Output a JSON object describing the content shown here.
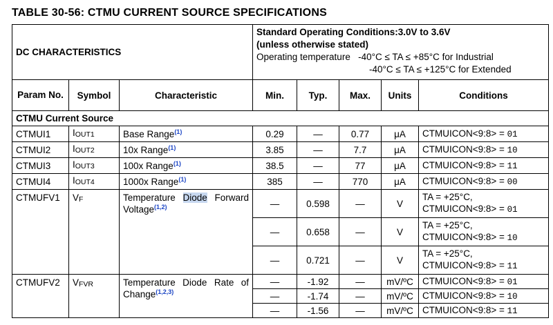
{
  "title": "TABLE 30-56:   CTMU CURRENT SOURCE SPECIFICATIONS",
  "header": {
    "dc_characteristics": "DC CHARACTERISTICS",
    "std_line1": "Standard Operating Conditions:3.0V to 3.6V",
    "std_line2": "(unless otherwise stated)",
    "op_temp_label": "Operating temperature",
    "op_temp_industrial": "-40°C ≤ TA ≤ +85°C for Industrial",
    "op_temp_extended": "-40°C ≤ TA ≤ +125°C for Extended"
  },
  "columns": {
    "param_no": "Param No.",
    "symbol": "Symbol",
    "characteristic": "Characteristic",
    "min": "Min.",
    "typ": "Typ.",
    "max": "Max.",
    "units": "Units",
    "conditions": "Conditions"
  },
  "section_label": "CTMU Current Source",
  "current_rows": [
    {
      "param": "CTMUI1",
      "sym_main": "I",
      "sym_sub": "OUT1",
      "char": "Base Range",
      "note": "(1)",
      "min": "0.29",
      "typ": "—",
      "max": "0.77",
      "units": "μA",
      "cond_prefix": "CTMUICON<9:8> = ",
      "cond_value": "01"
    },
    {
      "param": "CTMUI2",
      "sym_main": "I",
      "sym_sub": "OUT2",
      "char": "10x Range",
      "note": "(1)",
      "min": "3.85",
      "typ": "—",
      "max": "7.7",
      "units": "μA",
      "cond_prefix": "CTMUICON<9:8> = ",
      "cond_value": "10"
    },
    {
      "param": "CTMUI3",
      "sym_main": "I",
      "sym_sub": "OUT3",
      "char": "100x Range",
      "note": "(1)",
      "min": "38.5",
      "typ": "—",
      "max": "77",
      "units": "μA",
      "cond_prefix": "CTMUICON<9:8> = ",
      "cond_value": "11"
    },
    {
      "param": "CTMUI4",
      "sym_main": "I",
      "sym_sub": "OUT4",
      "char": "1000x Range",
      "note": "(1)",
      "min": "385",
      "typ": "—",
      "max": "770",
      "units": "μA",
      "cond_prefix": "CTMUICON<9:8> = ",
      "cond_value": "00"
    }
  ],
  "fv1": {
    "param": "CTMUFV1",
    "sym_main": "V",
    "sym_sub": "F",
    "char_pre": "Temperature ",
    "char_highlight": "Diode",
    "char_post": " Forward Voltage",
    "note": "(1,2)",
    "rows": [
      {
        "min": "—",
        "typ": "0.598",
        "max": "—",
        "units": "V",
        "cond_temp": "TA = +25°C,",
        "cond_prefix": "CTMUICON<9:8> = ",
        "cond_value": "01"
      },
      {
        "min": "—",
        "typ": "0.658",
        "max": "—",
        "units": "V",
        "cond_temp": "TA = +25°C,",
        "cond_prefix": "CTMUICON<9:8> = ",
        "cond_value": "10"
      },
      {
        "min": "—",
        "typ": "0.721",
        "max": "—",
        "units": "V",
        "cond_temp": "TA = +25°C,",
        "cond_prefix": "CTMUICON<9:8> = ",
        "cond_value": "11"
      }
    ]
  },
  "fv2": {
    "param": "CTMUFV2",
    "sym_main": "V",
    "sym_sub": "FVR",
    "char": "Temperature Diode Rate of Change",
    "note": "(1,2,3)",
    "rows": [
      {
        "min": "—",
        "typ": "-1.92",
        "max": "—",
        "units": "mV/ºC",
        "cond_prefix": "CTMUICON<9:8> = ",
        "cond_value": "01"
      },
      {
        "min": "—",
        "typ": "-1.74",
        "max": "—",
        "units": "mV/ºC",
        "cond_prefix": "CTMUICON<9:8> = ",
        "cond_value": "10"
      },
      {
        "min": "—",
        "typ": "-1.56",
        "max": "—",
        "units": "mV/ºC",
        "cond_prefix": "CTMUICON<9:8> = ",
        "cond_value": "11"
      }
    ]
  }
}
